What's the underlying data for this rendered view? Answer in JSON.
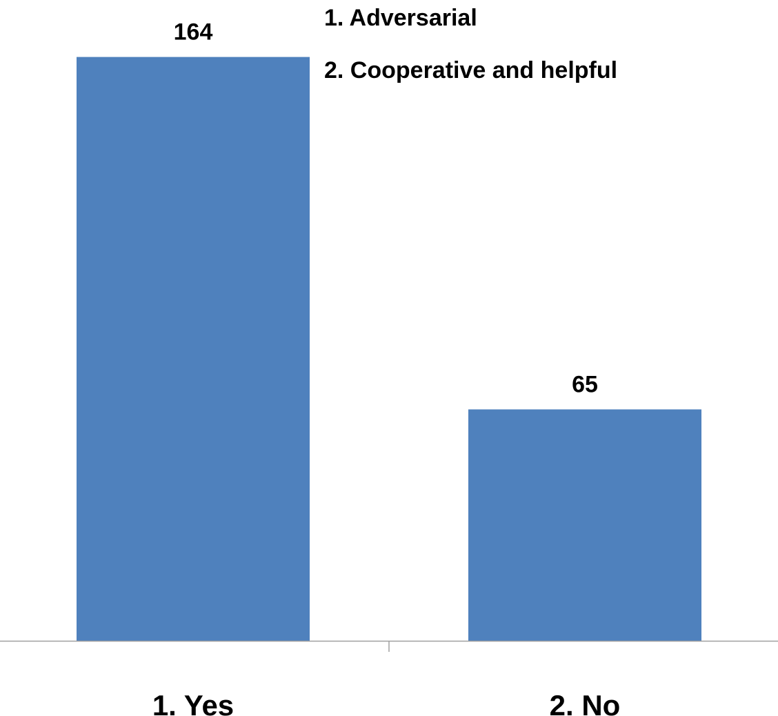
{
  "chart_data": {
    "type": "bar",
    "categories": [
      "1. Yes",
      "2. No"
    ],
    "values": [
      164,
      65
    ],
    "title": "",
    "xlabel": "",
    "ylabel": "",
    "ylim": [
      0,
      180
    ],
    "grid": false,
    "legend": {
      "placement": "top-center",
      "lines": [
        "1.  Adversarial",
        "2. Cooperative and helpful"
      ]
    },
    "colors": {
      "bar": "#4f81bd",
      "axis": "#a0a0a0",
      "text": "#000000"
    }
  }
}
